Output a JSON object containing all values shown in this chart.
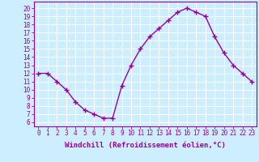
{
  "x": [
    0,
    1,
    2,
    3,
    4,
    5,
    6,
    7,
    8,
    9,
    10,
    11,
    12,
    13,
    14,
    15,
    16,
    17,
    18,
    19,
    20,
    21,
    22,
    23
  ],
  "y": [
    12,
    12,
    11,
    10,
    8.5,
    7.5,
    7,
    6.5,
    6.5,
    10.5,
    13,
    15,
    16.5,
    17.5,
    18.5,
    19.5,
    20,
    19.5,
    19,
    16.5,
    14.5,
    13,
    12,
    11
  ],
  "line_color": "#990099",
  "marker": "+",
  "markersize": 4,
  "linewidth": 1.0,
  "markeredgewidth": 1.0,
  "background_color": "#cceeff",
  "grid_color": "#ffffff",
  "xlabel": "Windchill (Refroidissement éolien,°C)",
  "xlabel_fontsize": 6.5,
  "xlabel_color": "#990099",
  "ylabel_ticks": [
    6,
    7,
    8,
    9,
    10,
    11,
    12,
    13,
    14,
    15,
    16,
    17,
    18,
    19,
    20
  ],
  "xlim": [
    -0.5,
    23.5
  ],
  "ylim": [
    5.5,
    20.8
  ],
  "xticks": [
    0,
    1,
    2,
    3,
    4,
    5,
    6,
    7,
    8,
    9,
    10,
    11,
    12,
    13,
    14,
    15,
    16,
    17,
    18,
    19,
    20,
    21,
    22,
    23
  ],
  "tick_color": "#990099",
  "tick_fontsize": 5.5,
  "axis_color": "#990099"
}
